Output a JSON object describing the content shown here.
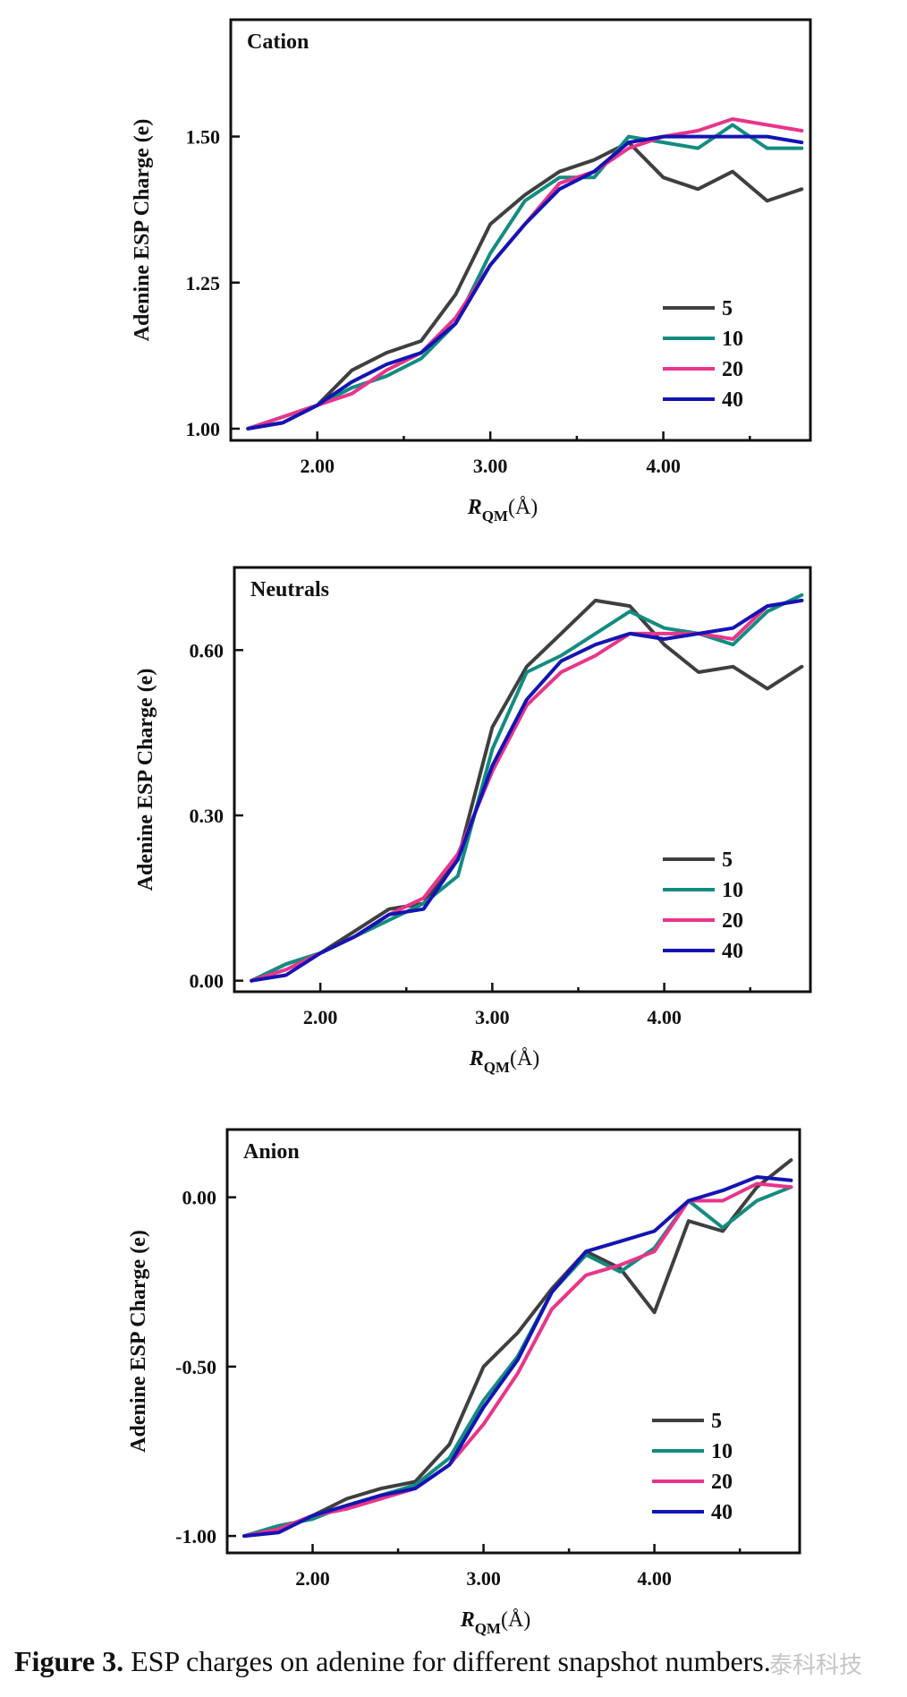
{
  "series_colors": {
    "5": "#3f3f3f",
    "10": "#138c80",
    "20": "#e8358a",
    "40": "#1414b4"
  },
  "caption": {
    "label": "Figure 3.",
    "text": " ESP charges on adenine for different snapshot numbers."
  },
  "watermark": "泰科科技",
  "chart_data": [
    {
      "type": "line",
      "title": "Cation",
      "ylabel": "Adenine ESP Charge (e)",
      "xlabel": "R_QM(Å)",
      "xlabel_main": "R",
      "xlabel_sub": "QM",
      "xlabel_unit": "(Å)",
      "xlim": [
        1.5,
        4.85
      ],
      "ylim": [
        0.98,
        1.7
      ],
      "xticks": [
        2.0,
        3.0,
        4.0
      ],
      "xtick_labels": [
        "2.00",
        "3.00",
        "4.00"
      ],
      "yticks": [
        1.0,
        1.25,
        1.5
      ],
      "ytick_labels": [
        "1.00",
        "1.25",
        "1.50"
      ],
      "grid": false,
      "legend_position": "lower-right",
      "x": [
        1.6,
        1.8,
        2.0,
        2.2,
        2.4,
        2.6,
        2.8,
        3.0,
        3.2,
        3.4,
        3.6,
        3.8,
        4.0,
        4.2,
        4.4,
        4.6,
        4.8
      ],
      "series": [
        {
          "name": "5",
          "values": [
            1.0,
            1.01,
            1.04,
            1.1,
            1.13,
            1.15,
            1.23,
            1.35,
            1.4,
            1.44,
            1.46,
            1.49,
            1.43,
            1.41,
            1.44,
            1.39,
            1.41
          ]
        },
        {
          "name": "10",
          "values": [
            1.0,
            1.02,
            1.04,
            1.07,
            1.09,
            1.12,
            1.18,
            1.3,
            1.39,
            1.43,
            1.43,
            1.5,
            1.49,
            1.48,
            1.52,
            1.48,
            1.48
          ]
        },
        {
          "name": "20",
          "values": [
            1.0,
            1.02,
            1.04,
            1.06,
            1.1,
            1.13,
            1.19,
            1.28,
            1.35,
            1.42,
            1.44,
            1.48,
            1.5,
            1.51,
            1.53,
            1.52,
            1.51
          ]
        },
        {
          "name": "40",
          "values": [
            1.0,
            1.01,
            1.04,
            1.08,
            1.11,
            1.13,
            1.18,
            1.28,
            1.35,
            1.41,
            1.44,
            1.49,
            1.5,
            1.5,
            1.5,
            1.5,
            1.49
          ]
        }
      ]
    },
    {
      "type": "line",
      "title": "Neutrals",
      "ylabel": "Adenine ESP Charge (e)",
      "xlabel": "R_QM(Å)",
      "xlabel_main": "R",
      "xlabel_sub": "QM",
      "xlabel_unit": "(Å)",
      "xlim": [
        1.5,
        4.85
      ],
      "ylim": [
        -0.02,
        0.75
      ],
      "xticks": [
        2.0,
        3.0,
        4.0
      ],
      "xtick_labels": [
        "2.00",
        "3.00",
        "4.00"
      ],
      "yticks": [
        0.0,
        0.3,
        0.6
      ],
      "ytick_labels": [
        "0.00",
        "0.30",
        "0.60"
      ],
      "grid": false,
      "legend_position": "lower-right",
      "x": [
        1.6,
        1.8,
        2.0,
        2.2,
        2.4,
        2.6,
        2.8,
        3.0,
        3.2,
        3.4,
        3.6,
        3.8,
        4.0,
        4.2,
        4.4,
        4.6,
        4.8
      ],
      "series": [
        {
          "name": "5",
          "values": [
            0.0,
            0.03,
            0.05,
            0.09,
            0.13,
            0.14,
            0.22,
            0.46,
            0.57,
            0.63,
            0.69,
            0.68,
            0.61,
            0.56,
            0.57,
            0.53,
            0.57
          ]
        },
        {
          "name": "10",
          "values": [
            0.0,
            0.03,
            0.05,
            0.08,
            0.11,
            0.14,
            0.19,
            0.42,
            0.56,
            0.59,
            0.63,
            0.67,
            0.64,
            0.63,
            0.61,
            0.67,
            0.7
          ]
        },
        {
          "name": "20",
          "values": [
            0.0,
            0.02,
            0.05,
            0.08,
            0.12,
            0.15,
            0.23,
            0.38,
            0.5,
            0.56,
            0.59,
            0.63,
            0.63,
            0.63,
            0.62,
            0.68,
            0.69
          ]
        },
        {
          "name": "40",
          "values": [
            0.0,
            0.01,
            0.05,
            0.08,
            0.12,
            0.13,
            0.22,
            0.39,
            0.51,
            0.58,
            0.61,
            0.63,
            0.62,
            0.63,
            0.64,
            0.68,
            0.69
          ]
        }
      ]
    },
    {
      "type": "line",
      "title": "Anion",
      "ylabel": "Adenine ESP Charge (e)",
      "xlabel": "R_QM(Å)",
      "xlabel_main": "R",
      "xlabel_sub": "QM",
      "xlabel_unit": "(Å)",
      "xlim": [
        1.5,
        4.85
      ],
      "ylim": [
        -1.05,
        0.2
      ],
      "xticks": [
        2.0,
        3.0,
        4.0
      ],
      "xtick_labels": [
        "2.00",
        "3.00",
        "4.00"
      ],
      "yticks": [
        -1.0,
        -0.5,
        0.0
      ],
      "ytick_labels": [
        "-1.00",
        "-0.50",
        "0.00"
      ],
      "grid": false,
      "legend_position": "lower-right",
      "x": [
        1.6,
        1.8,
        2.0,
        2.2,
        2.4,
        2.6,
        2.8,
        3.0,
        3.2,
        3.4,
        3.6,
        3.8,
        4.0,
        4.2,
        4.4,
        4.6,
        4.8
      ],
      "series": [
        {
          "name": "5",
          "values": [
            -1.0,
            -0.98,
            -0.94,
            -0.89,
            -0.86,
            -0.84,
            -0.73,
            -0.5,
            -0.4,
            -0.27,
            -0.16,
            -0.21,
            -0.34,
            -0.07,
            -0.1,
            0.03,
            0.11
          ]
        },
        {
          "name": "10",
          "values": [
            -1.0,
            -0.97,
            -0.95,
            -0.91,
            -0.88,
            -0.85,
            -0.77,
            -0.6,
            -0.47,
            -0.28,
            -0.17,
            -0.22,
            -0.15,
            -0.01,
            -0.09,
            -0.01,
            0.03
          ]
        },
        {
          "name": "20",
          "values": [
            -1.0,
            -0.98,
            -0.94,
            -0.92,
            -0.89,
            -0.86,
            -0.79,
            -0.67,
            -0.52,
            -0.33,
            -0.23,
            -0.2,
            -0.16,
            -0.01,
            -0.01,
            0.04,
            0.03
          ]
        },
        {
          "name": "40",
          "values": [
            -1.0,
            -0.99,
            -0.94,
            -0.91,
            -0.88,
            -0.86,
            -0.79,
            -0.62,
            -0.48,
            -0.28,
            -0.16,
            -0.13,
            -0.1,
            -0.01,
            0.02,
            0.06,
            0.05
          ]
        }
      ]
    }
  ]
}
